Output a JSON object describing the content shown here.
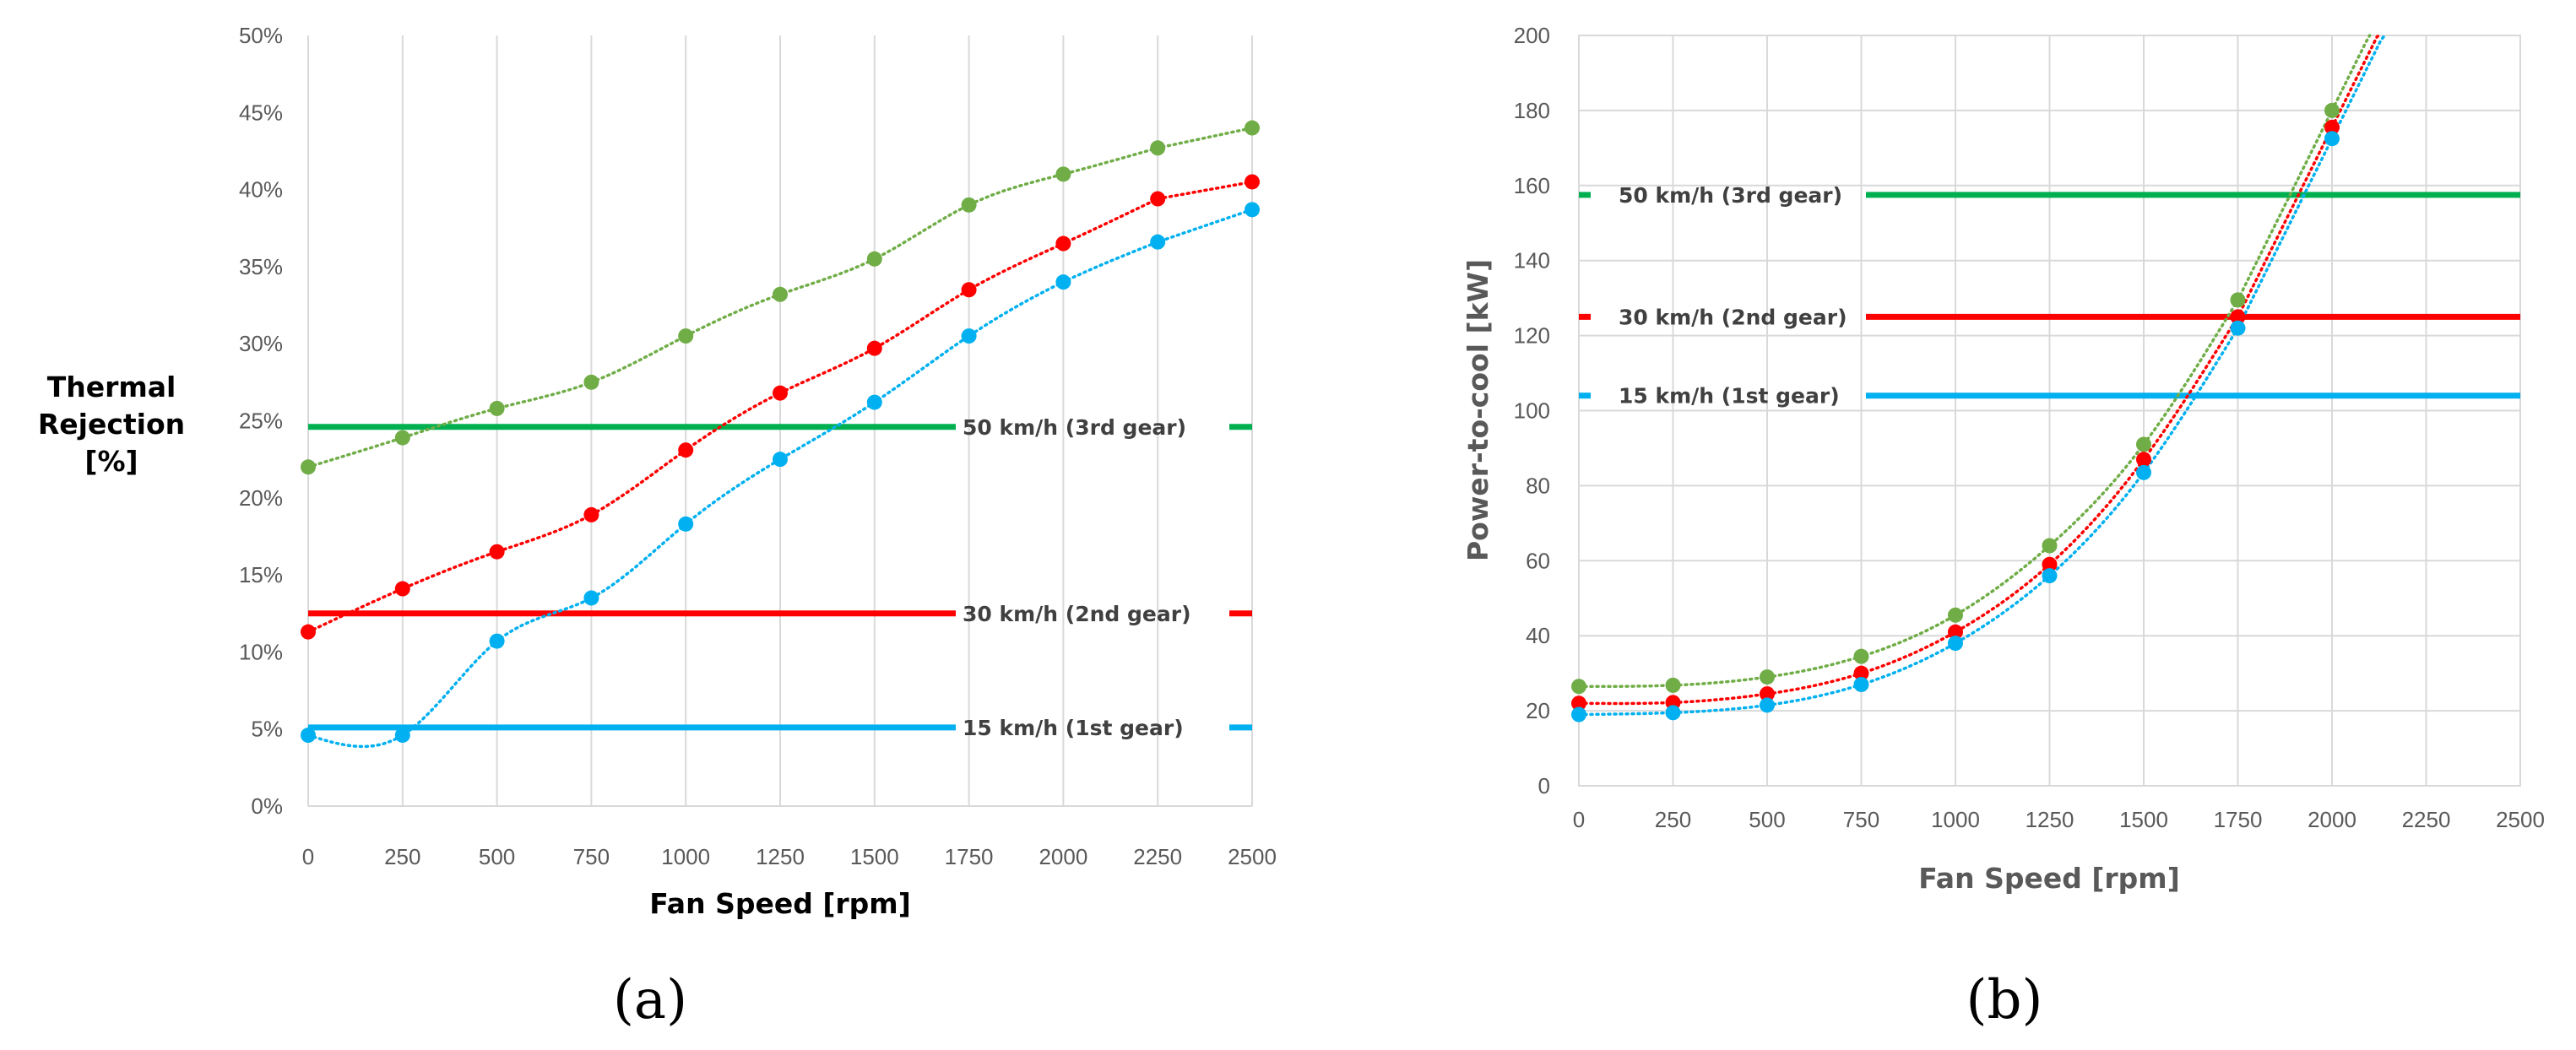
{
  "chart_data": [
    {
      "id": "a",
      "type": "scatter",
      "panel_label": "(a)",
      "title": "",
      "xlabel": "Fan Speed [rpm]",
      "ylabel_lines": [
        "Thermal",
        "Rejection",
        "[%]"
      ],
      "xlim": [
        0,
        2500
      ],
      "ylim": [
        0,
        50
      ],
      "x_ticks": [
        0,
        250,
        500,
        750,
        1000,
        1250,
        1500,
        1750,
        2000,
        2250,
        2500
      ],
      "x_tick_labels": [
        "0",
        "250",
        "500",
        "750",
        "1000",
        "1250",
        "1500",
        "1750",
        "2000",
        "2250",
        "2500"
      ],
      "y_ticks": [
        0,
        5,
        10,
        15,
        20,
        25,
        30,
        35,
        40,
        45,
        50
      ],
      "y_tick_labels": [
        "0%",
        "5%",
        "10%",
        "15%",
        "20%",
        "25%",
        "30%",
        "35%",
        "40%",
        "45%",
        "50%"
      ],
      "grid": "vertical",
      "x": [
        0,
        250,
        500,
        750,
        1000,
        1250,
        1500,
        1750,
        2000,
        2250,
        2500
      ],
      "series": [
        {
          "name": "50 km/h (3rd gear)",
          "color": "#70ad47",
          "values": [
            22.0,
            23.9,
            25.8,
            27.5,
            30.5,
            33.2,
            35.5,
            39.0,
            41.0,
            42.7,
            44.0
          ]
        },
        {
          "name": "30 km/h (2nd gear)",
          "color": "#ff0000",
          "values": [
            11.3,
            14.1,
            16.5,
            18.9,
            23.1,
            26.8,
            29.7,
            33.5,
            36.5,
            39.4,
            40.5
          ]
        },
        {
          "name": "15 km/h (1st gear)",
          "color": "#00b0f0",
          "values": [
            4.6,
            4.6,
            10.7,
            13.5,
            18.3,
            22.5,
            26.2,
            30.5,
            34.0,
            36.6,
            38.7
          ]
        }
      ],
      "reference_lines": [
        {
          "label": "50 km/h (3rd gear)",
          "value": 24.6,
          "color": "#00b050"
        },
        {
          "label": "30 km/h (2nd gear)",
          "value": 12.5,
          "color": "#ff0000"
        },
        {
          "label": "15 km/h (1st gear)",
          "value": 5.1,
          "color": "#00b0f0"
        }
      ]
    },
    {
      "id": "b",
      "type": "scatter",
      "panel_label": "(b)",
      "title": "",
      "xlabel": "Fan Speed [rpm]",
      "ylabel": "Power-to-cool [kW]",
      "xlim": [
        0,
        2500
      ],
      "ylim": [
        0,
        200
      ],
      "x_ticks": [
        0,
        250,
        500,
        750,
        1000,
        1250,
        1500,
        1750,
        2000,
        2250,
        2500
      ],
      "x_tick_labels": [
        "0",
        "250",
        "500",
        "750",
        "1000",
        "1250",
        "1500",
        "1750",
        "2000",
        "2250",
        "2500"
      ],
      "y_ticks": [
        0,
        20,
        40,
        60,
        80,
        100,
        120,
        140,
        160,
        180,
        200
      ],
      "y_tick_labels": [
        "0",
        "20",
        "40",
        "60",
        "80",
        "100",
        "120",
        "140",
        "160",
        "180",
        "200"
      ],
      "grid": "both",
      "x": [
        0,
        250,
        500,
        750,
        1000,
        1250,
        1500,
        1750,
        2000
      ],
      "series": [
        {
          "name": "50 km/h (3rd gear)",
          "color": "#70ad47",
          "values": [
            26.5,
            26.8,
            29.0,
            34.5,
            45.5,
            64.0,
            91.0,
            129.5,
            180.0
          ]
        },
        {
          "name": "30 km/h (2nd gear)",
          "color": "#ff0000",
          "values": [
            22.0,
            22.2,
            24.5,
            30.0,
            41.0,
            59.0,
            87.0,
            125.0,
            175.5
          ]
        },
        {
          "name": "15 km/h (1st gear)",
          "color": "#00b0f0",
          "values": [
            19.0,
            19.5,
            21.5,
            27.0,
            38.0,
            56.0,
            83.5,
            122.0,
            172.5
          ]
        }
      ],
      "reference_lines": [
        {
          "label": "50 km/h (3rd gear)",
          "value": 157.5,
          "color": "#00b050"
        },
        {
          "label": "30 km/h (2nd gear)",
          "value": 125.0,
          "color": "#ff0000"
        },
        {
          "label": "15 km/h (1st gear)",
          "value": 104.0,
          "color": "#00b0f0"
        }
      ]
    }
  ]
}
